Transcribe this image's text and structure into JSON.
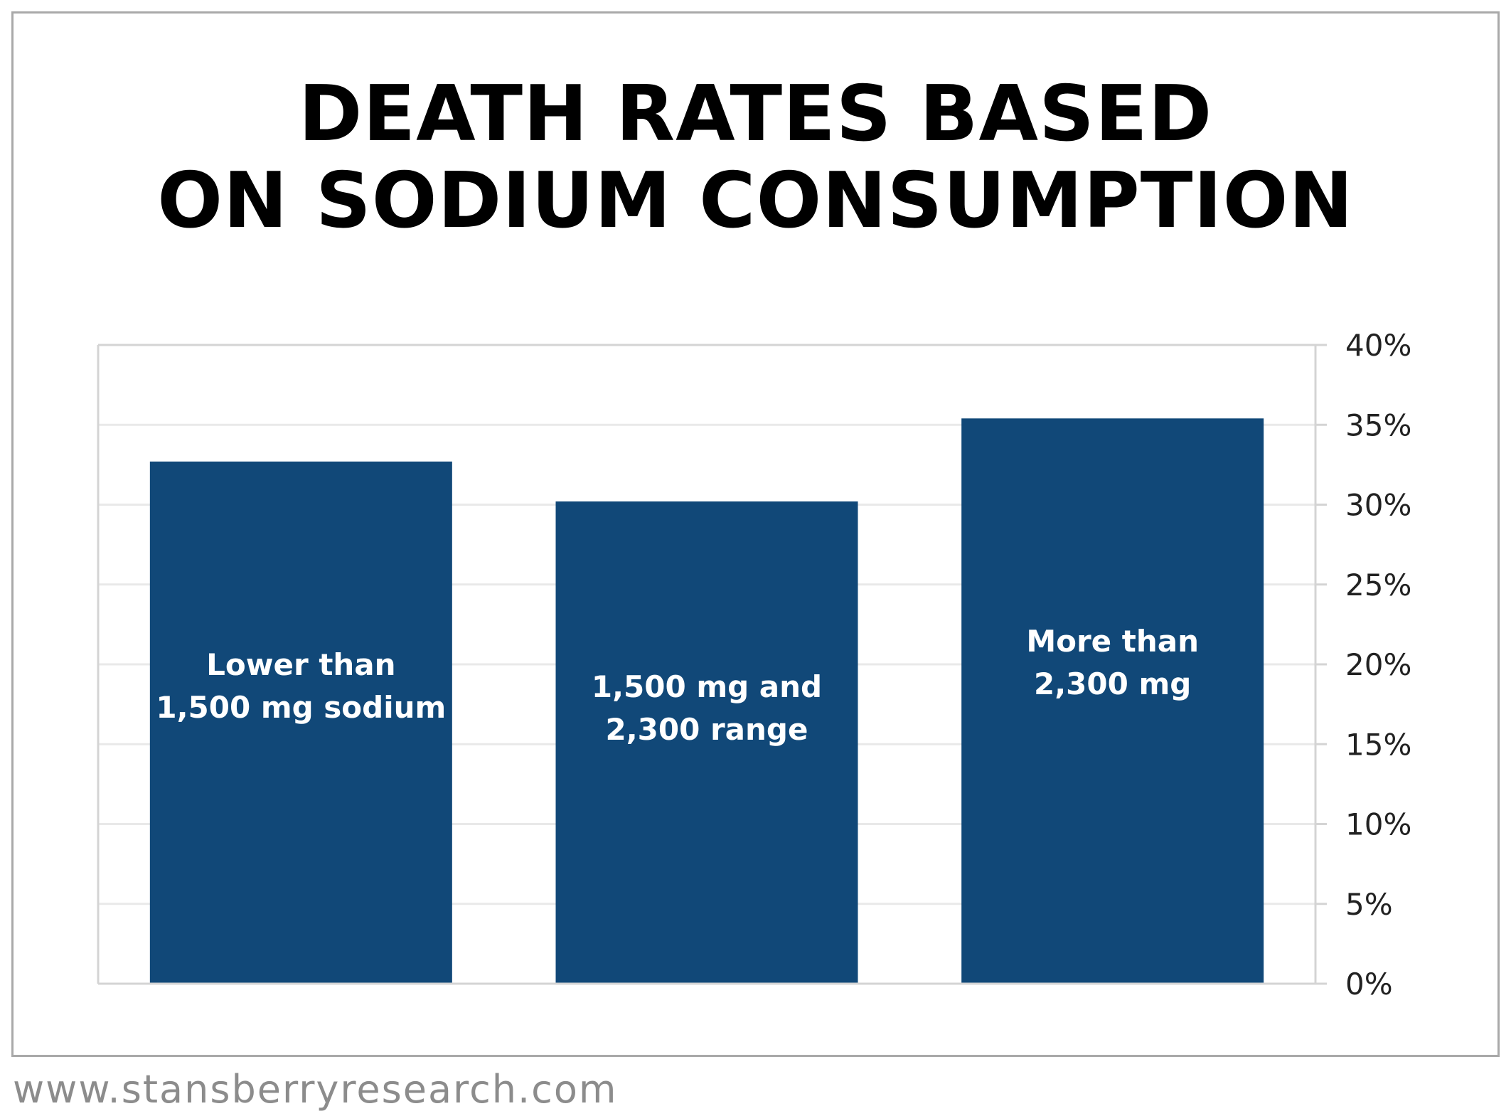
{
  "chart_data": {
    "type": "bar",
    "title": [
      "DEATH RATES BASED",
      "ON SODIUM CONSUMPTION"
    ],
    "categories": [
      [
        "Lower than",
        "1,500 mg sodium"
      ],
      [
        "1,500 mg and",
        "2,300 range"
      ],
      [
        "More than",
        "2,300 mg"
      ]
    ],
    "values": [
      32.7,
      30.2,
      35.4
    ],
    "y_axis": {
      "position": "right",
      "ticks": [
        "0%",
        "5%",
        "10%",
        "15%",
        "20%",
        "25%",
        "30%",
        "35%",
        "40%"
      ],
      "range": [
        0,
        40
      ]
    },
    "grid": true,
    "bar_color": "#114878",
    "label_color": "#ffffff"
  },
  "footer": {
    "source": "www.stansberryresearch.com"
  }
}
